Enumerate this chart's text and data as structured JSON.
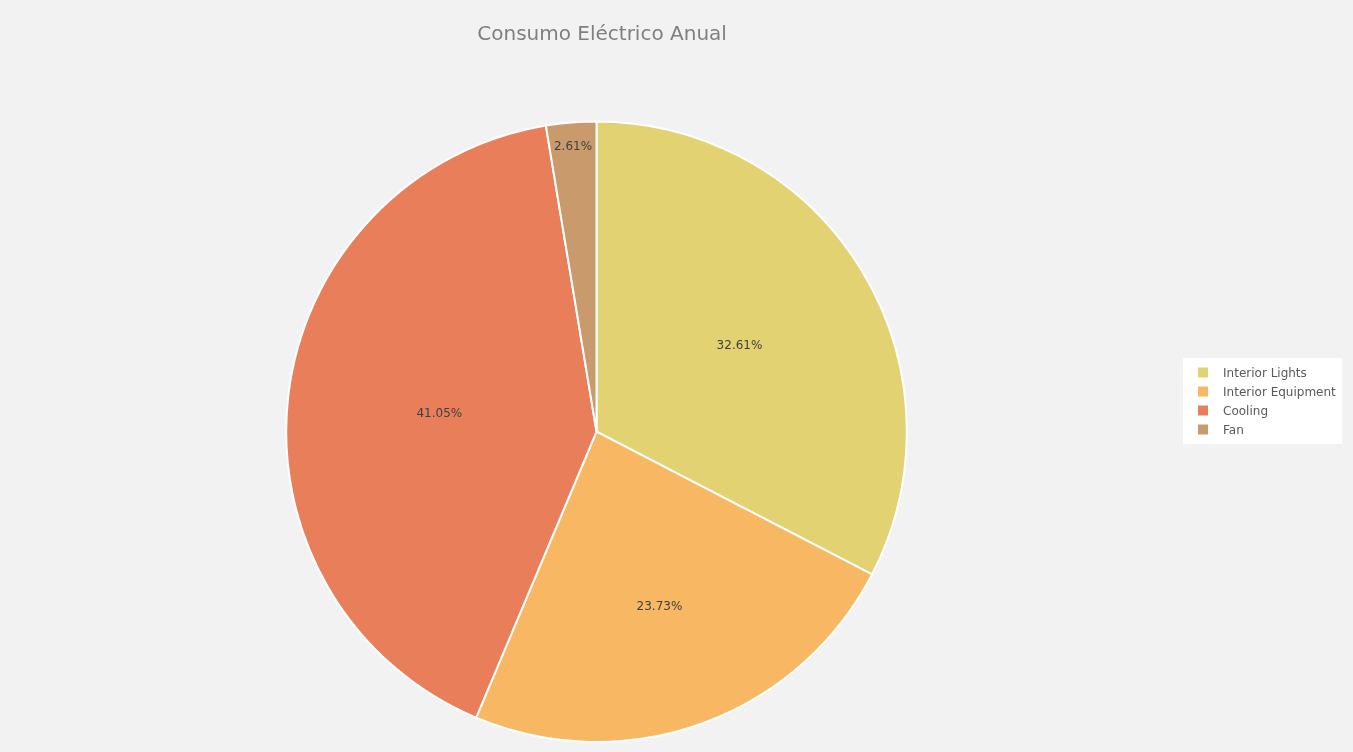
{
  "chart_data": {
    "type": "pie",
    "title": "Consumo Eléctrico Anual",
    "categories": [
      "Interior Lights",
      "Interior Equipment",
      "Cooling",
      "Fan"
    ],
    "values": [
      32.61,
      23.73,
      41.05,
      2.61
    ],
    "value_labels": [
      "32.61%",
      "23.73%",
      "41.05%",
      "2.61%"
    ],
    "colors": [
      "#e3d272",
      "#f8b763",
      "#e87e5a",
      "#c99a6c"
    ],
    "legend": "right"
  }
}
